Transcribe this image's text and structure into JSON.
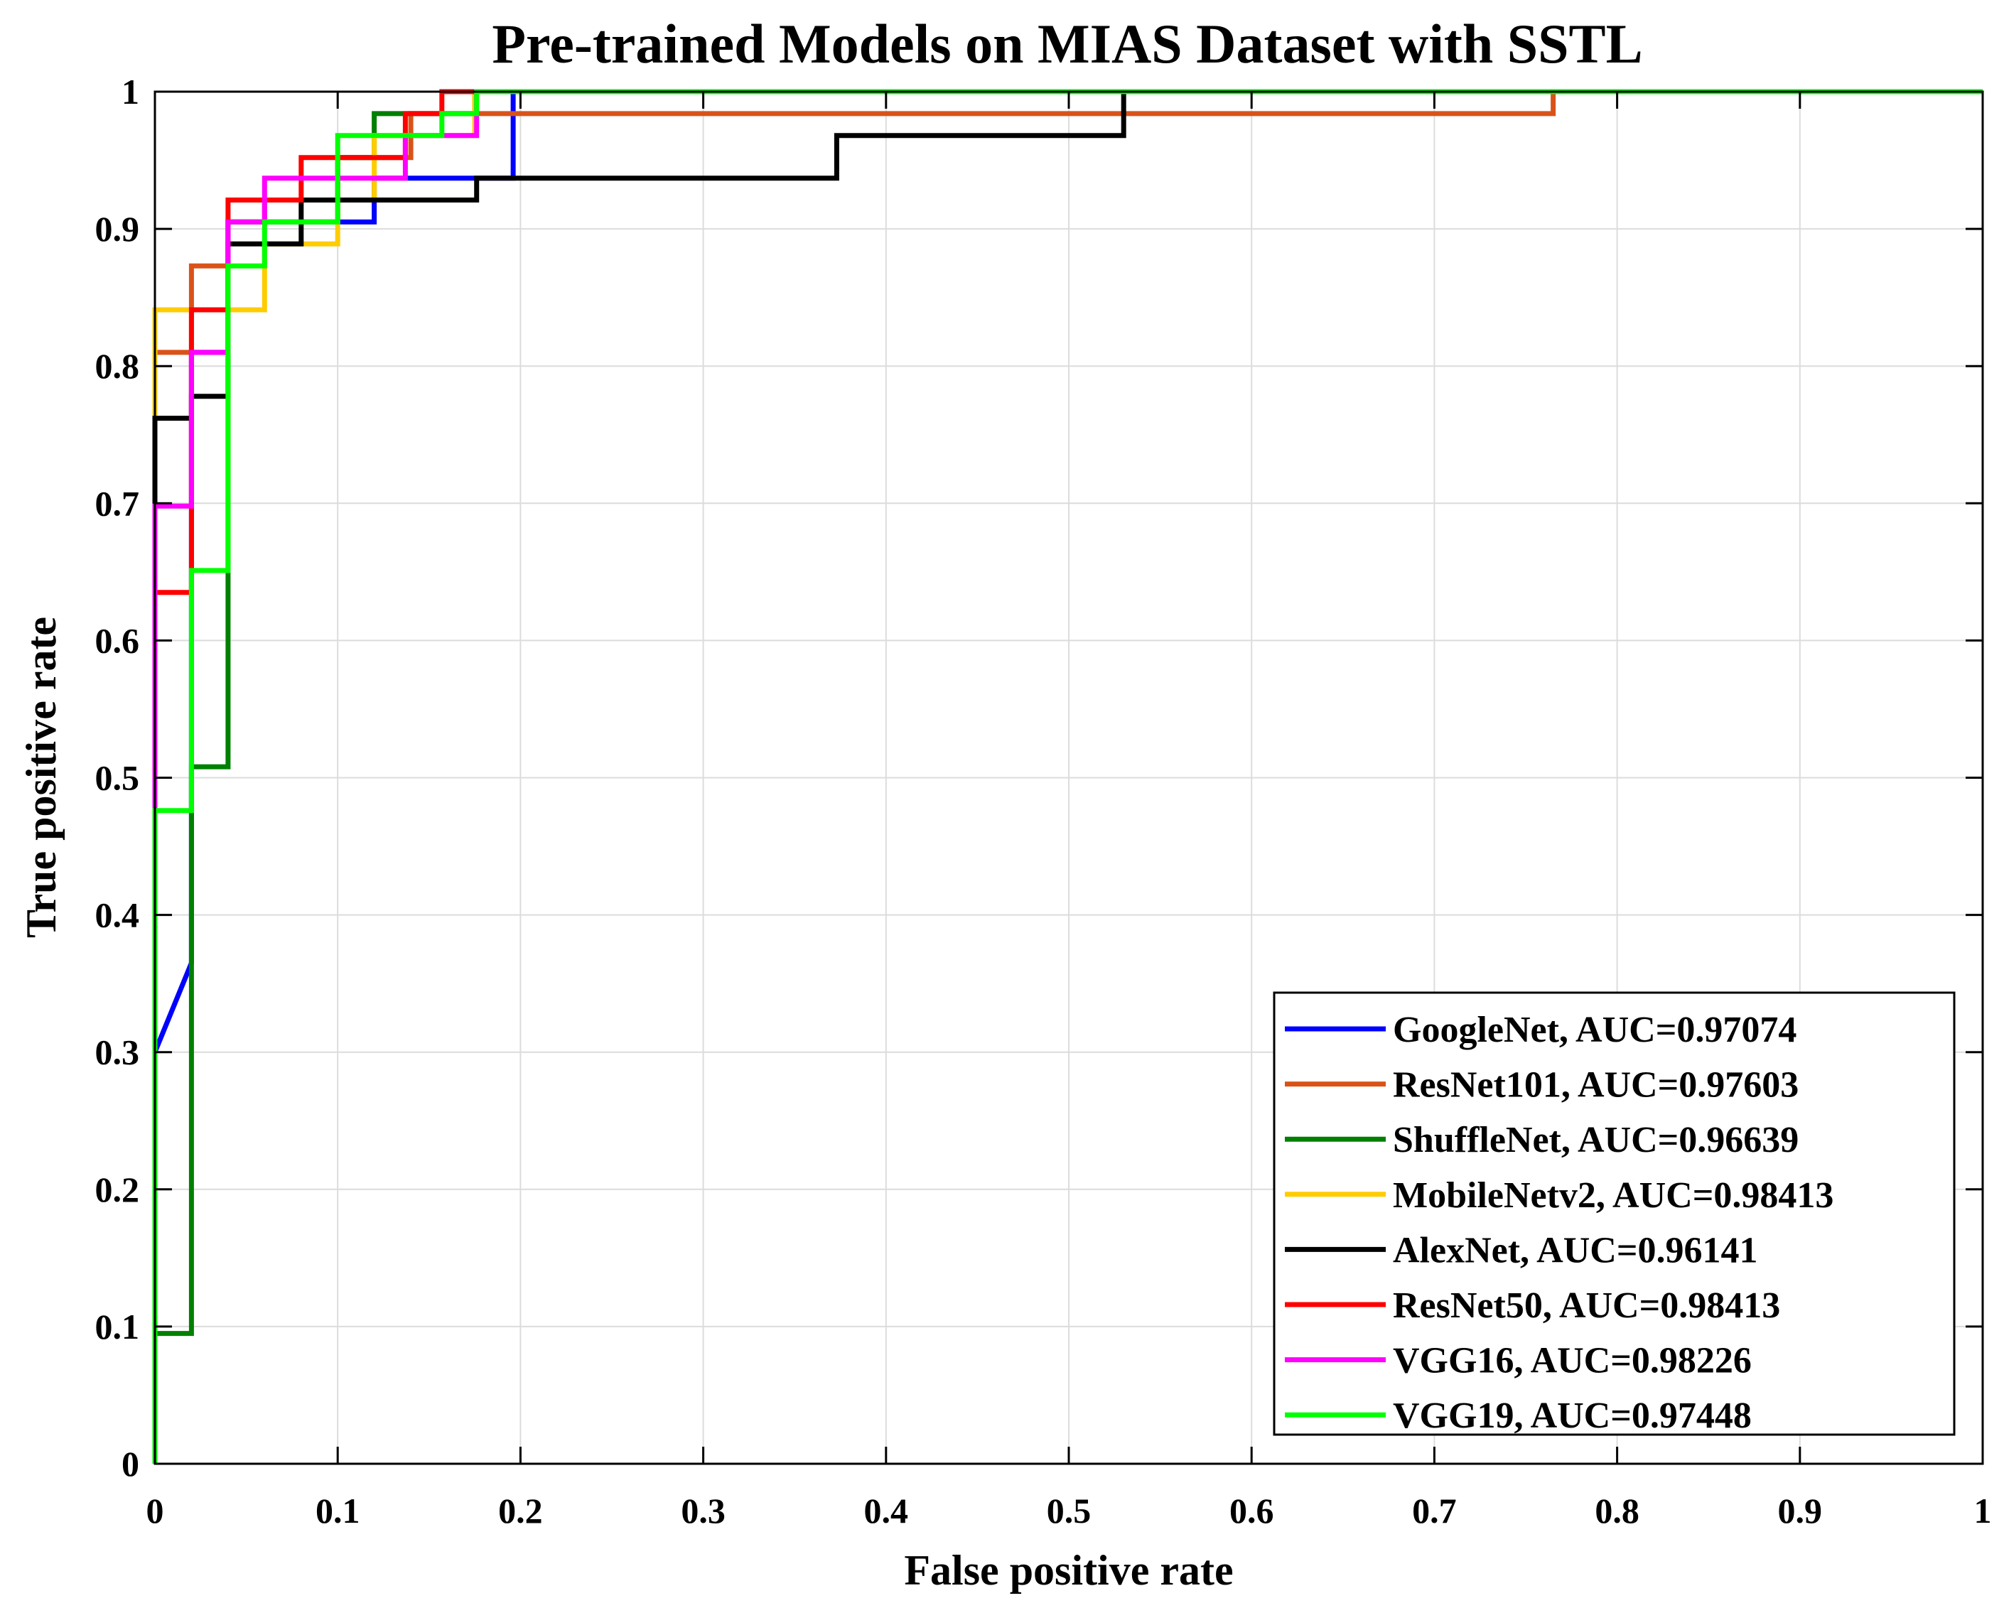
{
  "chart_data": {
    "type": "line",
    "title": "Pre-trained Models on MIAS Dataset with SSTL",
    "xlabel": "False positive rate",
    "ylabel": "True positive rate",
    "xlim": [
      0,
      1
    ],
    "ylim": [
      0,
      1
    ],
    "grid": true,
    "legend_position": "bottom-right",
    "xticks": [
      0,
      0.1,
      0.2,
      0.3,
      0.4,
      0.5,
      0.6,
      0.7,
      0.8,
      0.9,
      1
    ],
    "xtick_labels": [
      "0",
      "0.1",
      "0.2",
      "0.3",
      "0.4",
      "0.5",
      "0.6",
      "0.7",
      "0.8",
      "0.9",
      "1"
    ],
    "yticks": [
      0,
      0.1,
      0.2,
      0.3,
      0.4,
      0.5,
      0.6,
      0.7,
      0.8,
      0.9,
      1
    ],
    "ytick_labels": [
      "0",
      "0.1",
      "0.2",
      "0.3",
      "0.4",
      "0.5",
      "0.6",
      "0.7",
      "0.8",
      "0.9",
      "1"
    ],
    "series": [
      {
        "name": "GoogleNet, AUC=0.97074",
        "color": "#0000ff",
        "points": [
          [
            0,
            0
          ],
          [
            0,
            0.3
          ],
          [
            0.02,
            0.365
          ],
          [
            0.02,
            0.81
          ],
          [
            0.04,
            0.81
          ],
          [
            0.04,
            0.905
          ],
          [
            0.12,
            0.905
          ],
          [
            0.12,
            0.937
          ],
          [
            0.196,
            0.937
          ],
          [
            0.196,
            1
          ],
          [
            1,
            1
          ]
        ]
      },
      {
        "name": "ResNet101, AUC=0.97603",
        "color": "#d95319",
        "points": [
          [
            0,
            0
          ],
          [
            0,
            0.81
          ],
          [
            0.02,
            0.81
          ],
          [
            0.02,
            0.873
          ],
          [
            0.04,
            0.873
          ],
          [
            0.04,
            0.905
          ],
          [
            0.06,
            0.905
          ],
          [
            0.06,
            0.921
          ],
          [
            0.1,
            0.921
          ],
          [
            0.1,
            0.952
          ],
          [
            0.14,
            0.952
          ],
          [
            0.14,
            0.984
          ],
          [
            0.765,
            0.984
          ],
          [
            0.765,
            1
          ],
          [
            1,
            1
          ]
        ]
      },
      {
        "name": "ShuffleNet, AUC=0.96639",
        "color": "#008000",
        "points": [
          [
            0,
            0
          ],
          [
            0,
            0.095
          ],
          [
            0.02,
            0.095
          ],
          [
            0.02,
            0.508
          ],
          [
            0.04,
            0.508
          ],
          [
            0.04,
            0.905
          ],
          [
            0.1,
            0.905
          ],
          [
            0.1,
            0.952
          ],
          [
            0.12,
            0.952
          ],
          [
            0.12,
            0.984
          ],
          [
            0.175,
            0.984
          ],
          [
            0.175,
            1
          ],
          [
            1,
            1
          ]
        ]
      },
      {
        "name": "MobileNetv2, AUC=0.98413",
        "color": "#ffcc00",
        "points": [
          [
            0,
            0
          ],
          [
            0,
            0.841
          ],
          [
            0.06,
            0.841
          ],
          [
            0.06,
            0.889
          ],
          [
            0.1,
            0.889
          ],
          [
            0.1,
            0.921
          ],
          [
            0.12,
            0.921
          ],
          [
            0.12,
            0.968
          ],
          [
            0.175,
            0.968
          ],
          [
            0.175,
            1
          ],
          [
            1,
            1
          ]
        ]
      },
      {
        "name": "AlexNet, AUC=0.96141",
        "color": "#000000",
        "points": [
          [
            0,
            0
          ],
          [
            0,
            0.762
          ],
          [
            0.02,
            0.762
          ],
          [
            0.02,
            0.778
          ],
          [
            0.04,
            0.778
          ],
          [
            0.04,
            0.889
          ],
          [
            0.08,
            0.889
          ],
          [
            0.08,
            0.921
          ],
          [
            0.176,
            0.921
          ],
          [
            0.176,
            0.937
          ],
          [
            0.373,
            0.937
          ],
          [
            0.373,
            0.968
          ],
          [
            0.53,
            0.968
          ],
          [
            0.53,
            1
          ],
          [
            1,
            1
          ]
        ]
      },
      {
        "name": "ResNet50, AUC=0.98413",
        "color": "#ff0000",
        "points": [
          [
            0,
            0
          ],
          [
            0,
            0.635
          ],
          [
            0.02,
            0.635
          ],
          [
            0.02,
            0.841
          ],
          [
            0.04,
            0.841
          ],
          [
            0.04,
            0.921
          ],
          [
            0.08,
            0.921
          ],
          [
            0.08,
            0.952
          ],
          [
            0.137,
            0.952
          ],
          [
            0.137,
            0.984
          ],
          [
            0.157,
            0.984
          ],
          [
            0.157,
            1
          ],
          [
            1,
            1
          ]
        ]
      },
      {
        "name": "VGG16, AUC=0.98226",
        "color": "#ff00ff",
        "points": [
          [
            0,
            0
          ],
          [
            0,
            0.476
          ],
          [
            0,
            0.698
          ],
          [
            0.02,
            0.698
          ],
          [
            0.02,
            0.81
          ],
          [
            0.04,
            0.81
          ],
          [
            0.04,
            0.905
          ],
          [
            0.06,
            0.905
          ],
          [
            0.06,
            0.937
          ],
          [
            0.137,
            0.937
          ],
          [
            0.137,
            0.968
          ],
          [
            0.176,
            0.968
          ],
          [
            0.176,
            1
          ],
          [
            1,
            1
          ]
        ]
      },
      {
        "name": "VGG19, AUC=0.97448",
        "color": "#00ff00",
        "points": [
          [
            0,
            0
          ],
          [
            0,
            0.476
          ],
          [
            0.02,
            0.476
          ],
          [
            0.02,
            0.651
          ],
          [
            0.04,
            0.651
          ],
          [
            0.04,
            0.873
          ],
          [
            0.06,
            0.873
          ],
          [
            0.06,
            0.905
          ],
          [
            0.1,
            0.905
          ],
          [
            0.1,
            0.968
          ],
          [
            0.157,
            0.968
          ],
          [
            0.157,
            0.984
          ],
          [
            0.176,
            0.984
          ],
          [
            0.176,
            1
          ],
          [
            1,
            1
          ]
        ]
      }
    ]
  }
}
